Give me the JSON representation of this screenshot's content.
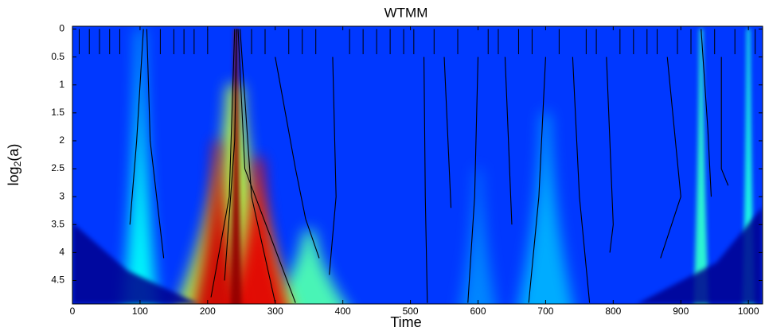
{
  "chart_data": {
    "type": "heatmap",
    "title": "WTMM",
    "x_label": "Time",
    "y_label": [
      "log",
      "2",
      "(a)"
    ],
    "xlim": [
      0,
      1021
    ],
    "ylim": [
      -0.05,
      4.92
    ],
    "y_inverted": true,
    "xticks": [
      0,
      100,
      200,
      300,
      400,
      500,
      600,
      700,
      800,
      900,
      1000
    ],
    "yticks": [
      0,
      0.5,
      1,
      1.5,
      2,
      2.5,
      3,
      3.5,
      4,
      4.5
    ],
    "colormap": "jet",
    "background_intensity": 0.18,
    "plumes": [
      {
        "x": 700,
        "top": 1.5,
        "spread": 45,
        "intensity": 0.3
      },
      {
        "x": 600,
        "top": 2.5,
        "spread": 30,
        "intensity": 0.26
      },
      {
        "x": 100,
        "top": 0,
        "spread": 28,
        "intensity": 0.38
      },
      {
        "x": 930,
        "top": 0,
        "spread": 12,
        "intensity": 0.42
      },
      {
        "x": 1000,
        "top": 0,
        "spread": 10,
        "intensity": 0.4
      },
      {
        "x": 350,
        "top": 3.6,
        "spread": 70,
        "intensity": 0.45
      },
      {
        "x": 240,
        "top": 1.0,
        "spread": 95,
        "intensity": 0.55
      },
      {
        "x": 215,
        "top": 2.0,
        "spread": 40,
        "intensity": 0.92
      },
      {
        "x": 275,
        "top": 2.3,
        "spread": 50,
        "intensity": 0.9
      },
      {
        "x": 242,
        "top": 0,
        "spread": 9,
        "intensity": 0.98
      }
    ],
    "ridges": [
      {
        "x": [
          105,
          95,
          85
        ],
        "y": [
          0,
          2,
          3.5
        ]
      },
      {
        "x": [
          110,
          115,
          135
        ],
        "y": [
          0,
          2,
          4.1
        ]
      },
      {
        "x": [
          243,
          240,
          225
        ],
        "y": [
          0,
          2,
          4.5
        ]
      },
      {
        "x": [
          240,
          232,
          205
        ],
        "y": [
          0,
          3,
          4.8
        ]
      },
      {
        "x": [
          245,
          255,
          330
        ],
        "y": [
          0,
          2.5,
          4.9
        ]
      },
      {
        "x": [
          248,
          265,
          300
        ],
        "y": [
          0,
          3,
          4.9
        ]
      },
      {
        "x": [
          300,
          330,
          345,
          365
        ],
        "y": [
          0.5,
          2.5,
          3.4,
          4.1
        ]
      },
      {
        "x": [
          385,
          390,
          380
        ],
        "y": [
          0.5,
          3,
          4.4
        ]
      },
      {
        "x": [
          520,
          522,
          525
        ],
        "y": [
          0.5,
          3,
          4.9
        ]
      },
      {
        "x": [
          550,
          560
        ],
        "y": [
          0.5,
          3.2
        ]
      },
      {
        "x": [
          600,
          595,
          585
        ],
        "y": [
          0.5,
          3,
          4.9
        ]
      },
      {
        "x": [
          640,
          650
        ],
        "y": [
          0.5,
          3.5
        ]
      },
      {
        "x": [
          700,
          690,
          675
        ],
        "y": [
          0.5,
          3,
          4.9
        ]
      },
      {
        "x": [
          740,
          750,
          765
        ],
        "y": [
          0.5,
          3,
          4.9
        ]
      },
      {
        "x": [
          790,
          800,
          795
        ],
        "y": [
          0.5,
          3.5,
          4.0
        ]
      },
      {
        "x": [
          880,
          900,
          870
        ],
        "y": [
          0.5,
          3,
          4.1
        ]
      },
      {
        "x": [
          930,
          940,
          945
        ],
        "y": [
          0,
          1.8,
          3
        ]
      },
      {
        "x": [
          960,
          960,
          970
        ],
        "y": [
          0.5,
          2.5,
          2.8
        ]
      }
    ],
    "short_ridges_x": [
      10,
      25,
      40,
      55,
      70,
      130,
      150,
      165,
      180,
      200,
      265,
      285,
      320,
      340,
      360,
      410,
      430,
      450,
      470,
      490,
      505,
      535,
      570,
      615,
      630,
      660,
      680,
      720,
      760,
      775,
      810,
      830,
      850,
      865,
      895,
      915,
      950,
      980,
      1010
    ],
    "short_ridges_y": [
      0,
      0.45
    ]
  }
}
